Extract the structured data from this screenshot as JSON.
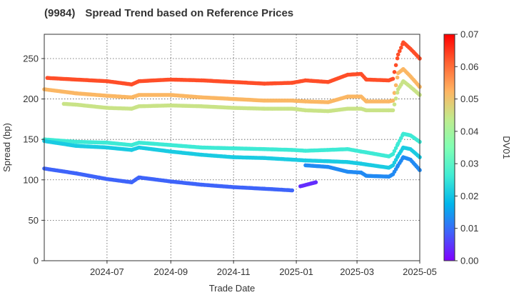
{
  "title": {
    "code": "(9984)",
    "text": "Spread Trend based on Reference Prices"
  },
  "chart_data": {
    "type": "scatter",
    "title": "(9984)   Spread Trend based on Reference Prices",
    "xlabel": "Trade Date",
    "ylabel": "Spread (bp)",
    "colorbar_label": "DV01",
    "xlim": [
      "2024-05-01",
      "2025-05-01"
    ],
    "ylim": [
      0,
      280
    ],
    "yticks": [
      0,
      50,
      100,
      150,
      200,
      250
    ],
    "xticks": [
      "2024-07-01",
      "2024-09-01",
      "2024-11-01",
      "2025-01-01",
      "2025-03-01",
      "2025-05-01"
    ],
    "xtick_labels": [
      "2024-07",
      "2024-09",
      "2024-11",
      "2025-01",
      "2025-03",
      "2025-05"
    ],
    "colorbar_range": [
      0.0,
      0.07
    ],
    "colorbar_ticks": [
      "0.00",
      "0.01",
      "0.02",
      "0.03",
      "0.04",
      "0.05",
      "0.06",
      "0.07"
    ],
    "colormap": [
      "#8000ff",
      "#4062fa",
      "#00b5eb",
      "#40ecd4",
      "#80ffb4",
      "#c0eb8d",
      "#ffb462",
      "#ff6232",
      "#ff0000"
    ],
    "grid": true,
    "series": [
      {
        "dv01": 0.063,
        "points": [
          [
            "2024-05-04",
            226
          ],
          [
            "2024-06-01",
            224
          ],
          [
            "2024-07-01",
            222
          ],
          [
            "2024-07-25",
            218
          ],
          [
            "2024-08-01",
            222
          ],
          [
            "2024-09-01",
            224
          ],
          [
            "2024-10-01",
            223
          ],
          [
            "2024-11-01",
            221
          ],
          [
            "2024-12-01",
            219
          ],
          [
            "2024-12-28",
            220
          ],
          [
            "2025-01-10",
            223
          ],
          [
            "2025-02-01",
            221
          ],
          [
            "2025-02-20",
            230
          ],
          [
            "2025-03-05",
            231
          ],
          [
            "2025-03-10",
            224
          ],
          [
            "2025-04-01",
            223
          ],
          [
            "2025-04-05",
            225
          ],
          [
            "2025-04-10",
            255
          ],
          [
            "2025-04-15",
            270
          ],
          [
            "2025-04-22",
            262
          ],
          [
            "2025-05-01",
            250
          ]
        ]
      },
      {
        "dv01": 0.052,
        "points": [
          [
            "2024-05-01",
            212
          ],
          [
            "2024-06-01",
            207
          ],
          [
            "2024-07-01",
            204
          ],
          [
            "2024-07-25",
            202
          ],
          [
            "2024-08-01",
            205
          ],
          [
            "2024-09-01",
            205
          ],
          [
            "2024-10-01",
            202
          ],
          [
            "2024-11-01",
            200
          ],
          [
            "2024-12-01",
            198
          ],
          [
            "2024-12-28",
            198
          ],
          [
            "2025-01-10",
            197
          ],
          [
            "2025-02-01",
            196
          ],
          [
            "2025-02-20",
            203
          ],
          [
            "2025-03-05",
            203
          ],
          [
            "2025-03-10",
            197
          ],
          [
            "2025-04-01",
            197
          ],
          [
            "2025-04-05",
            198
          ],
          [
            "2025-04-10",
            232
          ],
          [
            "2025-04-15",
            237
          ],
          [
            "2025-04-22",
            228
          ],
          [
            "2025-05-01",
            215
          ]
        ]
      },
      {
        "dv01": 0.045,
        "points": [
          [
            "2024-05-20",
            194
          ],
          [
            "2024-06-01",
            193
          ],
          [
            "2024-07-01",
            189
          ],
          [
            "2024-07-25",
            188
          ],
          [
            "2024-08-01",
            191
          ],
          [
            "2024-09-01",
            192
          ],
          [
            "2024-10-01",
            191
          ],
          [
            "2024-11-01",
            189
          ],
          [
            "2024-12-01",
            188
          ],
          [
            "2024-12-28",
            188
          ],
          [
            "2025-01-10",
            186
          ],
          [
            "2025-02-01",
            185
          ],
          [
            "2025-02-20",
            188
          ],
          [
            "2025-03-05",
            188
          ],
          [
            "2025-03-10",
            186
          ],
          [
            "2025-04-01",
            186
          ],
          [
            "2025-04-05",
            186
          ],
          [
            "2025-04-10",
            212
          ],
          [
            "2025-04-15",
            222
          ],
          [
            "2025-04-22",
            215
          ],
          [
            "2025-05-01",
            205
          ]
        ]
      },
      {
        "dv01": 0.026,
        "points": [
          [
            "2024-05-01",
            150
          ],
          [
            "2024-06-01",
            147
          ],
          [
            "2024-07-01",
            146
          ],
          [
            "2024-07-25",
            143
          ],
          [
            "2024-08-01",
            146
          ],
          [
            "2024-09-01",
            143
          ],
          [
            "2024-10-01",
            140
          ],
          [
            "2024-11-01",
            139
          ],
          [
            "2024-12-01",
            138
          ],
          [
            "2024-12-28",
            137
          ],
          [
            "2025-01-10",
            136
          ],
          [
            "2025-02-01",
            137
          ],
          [
            "2025-02-20",
            138
          ],
          [
            "2025-03-05",
            135
          ],
          [
            "2025-03-10",
            134
          ],
          [
            "2025-04-01",
            129
          ],
          [
            "2025-04-05",
            132
          ],
          [
            "2025-04-10",
            145
          ],
          [
            "2025-04-15",
            157
          ],
          [
            "2025-04-22",
            155
          ],
          [
            "2025-05-01",
            147
          ]
        ]
      },
      {
        "dv01": 0.021,
        "points": [
          [
            "2024-05-01",
            148
          ],
          [
            "2024-06-01",
            142
          ],
          [
            "2024-07-01",
            140
          ],
          [
            "2024-07-25",
            137
          ],
          [
            "2024-08-01",
            140
          ],
          [
            "2024-09-01",
            135
          ],
          [
            "2024-10-01",
            131
          ],
          [
            "2024-11-01",
            128
          ],
          [
            "2024-12-01",
            127
          ],
          [
            "2024-12-28",
            125
          ],
          [
            "2025-01-10",
            124
          ],
          [
            "2025-02-01",
            123
          ],
          [
            "2025-02-20",
            122
          ],
          [
            "2025-03-05",
            120
          ],
          [
            "2025-03-10",
            119
          ],
          [
            "2025-04-01",
            115
          ],
          [
            "2025-04-05",
            118
          ],
          [
            "2025-04-10",
            130
          ],
          [
            "2025-04-15",
            140
          ],
          [
            "2025-04-22",
            138
          ],
          [
            "2025-05-01",
            128
          ]
        ]
      },
      {
        "dv01": 0.013,
        "points": [
          [
            "2025-01-10",
            118
          ],
          [
            "2025-02-01",
            116
          ],
          [
            "2025-02-20",
            110
          ],
          [
            "2025-03-05",
            109
          ],
          [
            "2025-03-10",
            105
          ],
          [
            "2025-04-01",
            104
          ],
          [
            "2025-04-05",
            107
          ],
          [
            "2025-04-10",
            118
          ],
          [
            "2025-04-15",
            128
          ],
          [
            "2025-04-22",
            125
          ],
          [
            "2025-05-01",
            112
          ]
        ]
      },
      {
        "dv01": 0.009,
        "points": [
          [
            "2024-05-01",
            114
          ],
          [
            "2024-06-01",
            108
          ],
          [
            "2024-07-01",
            101
          ],
          [
            "2024-07-25",
            97
          ],
          [
            "2024-08-01",
            103
          ],
          [
            "2024-09-01",
            98
          ],
          [
            "2024-10-01",
            94
          ],
          [
            "2024-11-01",
            91
          ],
          [
            "2024-12-01",
            89
          ],
          [
            "2024-12-28",
            87
          ]
        ]
      },
      {
        "dv01": 0.004,
        "points": [
          [
            "2025-01-05",
            92
          ],
          [
            "2025-01-20",
            97
          ]
        ]
      }
    ]
  }
}
